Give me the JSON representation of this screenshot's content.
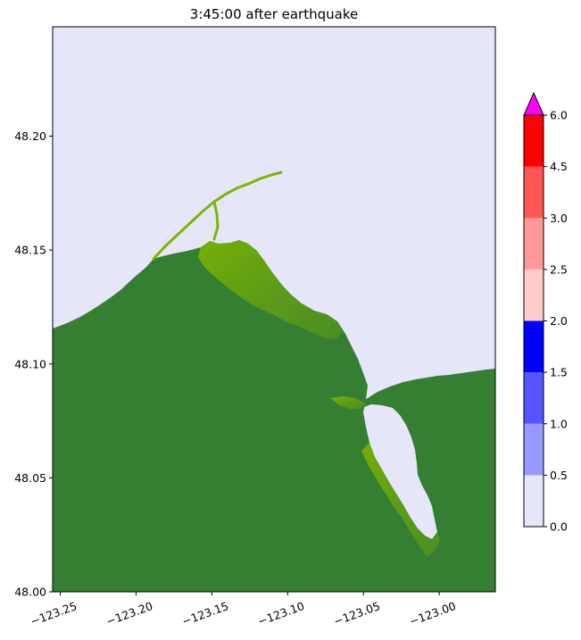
{
  "title": "3:45:00 after earthquake",
  "map": {
    "x_range": [
      -123.255,
      -122.963
    ],
    "y_range": [
      48.0,
      48.248
    ],
    "xticks": [
      {
        "value": -123.25,
        "label": "−123.25"
      },
      {
        "value": -123.2,
        "label": "−123.20"
      },
      {
        "value": -123.15,
        "label": "−123.15"
      },
      {
        "value": -123.1,
        "label": "−123.10"
      },
      {
        "value": -123.05,
        "label": "−123.05"
      },
      {
        "value": -123.0,
        "label": "−123.00"
      }
    ],
    "yticks": [
      {
        "value": 48.0,
        "label": "48.00"
      },
      {
        "value": 48.05,
        "label": "48.05"
      },
      {
        "value": 48.1,
        "label": "48.10"
      },
      {
        "value": 48.15,
        "label": "48.15"
      },
      {
        "value": 48.2,
        "label": "48.20"
      }
    ],
    "colors": {
      "water": "#e6e6fa",
      "land": "#357f32",
      "shallow_land": "#7db500",
      "frame": "#000000"
    }
  },
  "colorbar": {
    "levels": [
      0.0,
      0.5,
      1.0,
      1.5,
      2.0,
      2.5,
      3.0,
      4.5,
      6.0
    ],
    "labels": [
      "0.0",
      "0.5",
      "1.0",
      "1.5",
      "2.0",
      "2.5",
      "3.0",
      "4.5",
      "6.0"
    ],
    "colors": [
      "#e6e6fa",
      "#9999ff",
      "#5555ff",
      "#0000ff",
      "#ffcccc",
      "#ff9999",
      "#ff5555",
      "#ff0000"
    ],
    "extend_color": "#ff00ff"
  }
}
